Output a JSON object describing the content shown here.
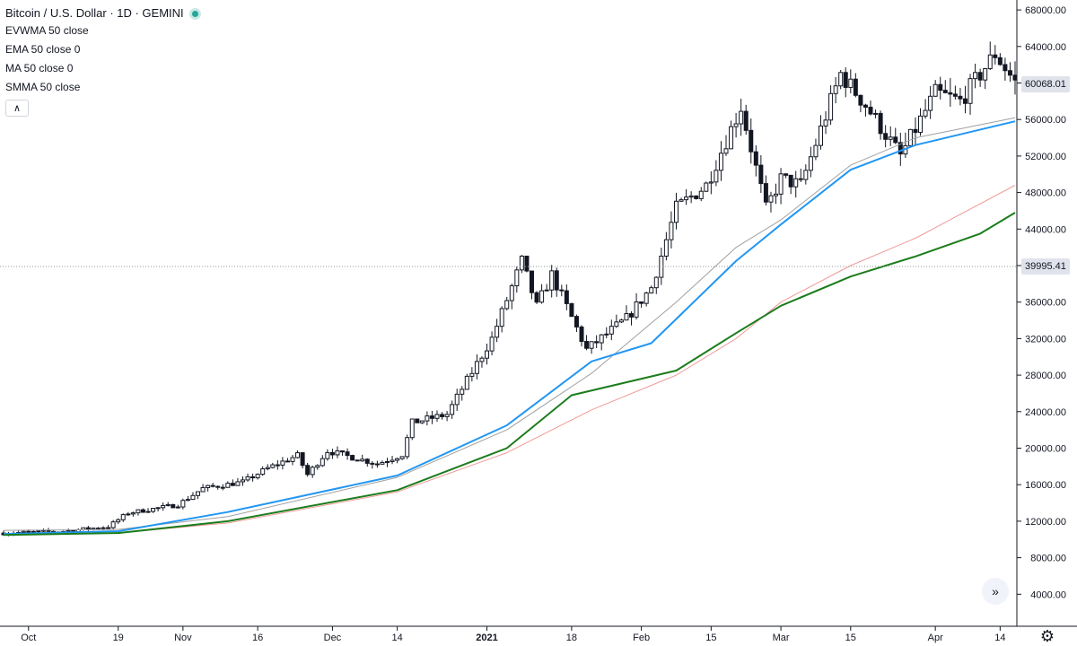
{
  "header": {
    "title": "Bitcoin / U.S. Dollar · 1D · GEMINI",
    "indicators": [
      "EVWMA 50 close",
      "EMA 50 close 0",
      "MA 50 close 0",
      "SMMA 50 close"
    ]
  },
  "price_tags": {
    "last": "60068.01",
    "crosshair": "39995.41"
  },
  "colors": {
    "evwma": "#a0a0a0",
    "ema": "#2196f3",
    "ma": "#ef9a9a",
    "smma": "#1b7c1b",
    "candle": "#131722"
  },
  "icons": {
    "collapse": "chevron-up-icon",
    "scroll": "double-chevron-right-icon",
    "settings": "gear-icon"
  },
  "chart_data": {
    "type": "line",
    "title": "Bitcoin / U.S. Dollar · 1D · GEMINI",
    "xlabel": "",
    "ylabel": "",
    "ylim": [
      2000,
      70000
    ],
    "yticks": [
      4000,
      8000,
      12000,
      16000,
      20000,
      24000,
      28000,
      32000,
      36000,
      40000,
      44000,
      48000,
      52000,
      56000,
      60000,
      64000,
      68000
    ],
    "ytick_labels": [
      "4000.00",
      "8000.00",
      "12000.00",
      "16000.00",
      "20000.00",
      "24000.00",
      "28000.00",
      "32000.00",
      "36000.00",
      "40000.00",
      "44000.00",
      "48000.00",
      "52000.00",
      "56000.00",
      "60000.00",
      "64000.00",
      "68000.00"
    ],
    "x_ticks": [
      {
        "label": "Oct",
        "date": "2020-10-01"
      },
      {
        "label": "19",
        "date": "2020-10-19"
      },
      {
        "label": "Nov",
        "date": "2020-11-01"
      },
      {
        "label": "16",
        "date": "2020-11-16"
      },
      {
        "label": "Dec",
        "date": "2020-12-01"
      },
      {
        "label": "14",
        "date": "2020-12-14"
      },
      {
        "label": "2021",
        "date": "2021-01-01"
      },
      {
        "label": "18",
        "date": "2021-01-18"
      },
      {
        "label": "Feb",
        "date": "2021-02-01"
      },
      {
        "label": "15",
        "date": "2021-02-15"
      },
      {
        "label": "Mar",
        "date": "2021-03-01"
      },
      {
        "label": "15",
        "date": "2021-03-15"
      },
      {
        "label": "Apr",
        "date": "2021-04-01"
      },
      {
        "label": "14",
        "date": "2021-04-14"
      }
    ],
    "price_keypoints": [
      [
        "2020-09-26",
        10700
      ],
      [
        "2020-10-08",
        10900
      ],
      [
        "2020-10-17",
        11400
      ],
      [
        "2020-10-21",
        12900
      ],
      [
        "2020-10-31",
        13800
      ],
      [
        "2020-11-05",
        15600
      ],
      [
        "2020-11-13",
        16300
      ],
      [
        "2020-11-18",
        17800
      ],
      [
        "2020-11-24",
        19200
      ],
      [
        "2020-11-26",
        17100
      ],
      [
        "2020-11-30",
        19700
      ],
      [
        "2020-12-10",
        18300
      ],
      [
        "2020-12-15",
        19300
      ],
      [
        "2020-12-17",
        22800
      ],
      [
        "2020-12-24",
        23700
      ],
      [
        "2020-12-27",
        26500
      ],
      [
        "2021-01-02",
        32000
      ],
      [
        "2021-01-08",
        40500
      ],
      [
        "2021-01-11",
        35500
      ],
      [
        "2021-01-14",
        39000
      ],
      [
        "2021-01-21",
        30800
      ],
      [
        "2021-01-29",
        34200
      ],
      [
        "2021-02-03",
        37600
      ],
      [
        "2021-02-08",
        46300
      ],
      [
        "2021-02-14",
        48800
      ],
      [
        "2021-02-21",
        57400
      ],
      [
        "2021-02-26",
        46200
      ],
      [
        "2021-03-01",
        49500
      ],
      [
        "2021-03-05",
        48800
      ],
      [
        "2021-03-13",
        61000
      ],
      [
        "2021-03-18",
        57600
      ],
      [
        "2021-03-25",
        52000
      ],
      [
        "2021-04-01",
        58900
      ],
      [
        "2021-04-06",
        58000
      ],
      [
        "2021-04-13",
        63200
      ],
      [
        "2021-04-17",
        60068
      ]
    ],
    "series": [
      {
        "name": "EVWMA 50 close",
        "color": "#a0a0a0",
        "values": [
          [
            "2020-09-26",
            11000
          ],
          [
            "2020-10-19",
            11100
          ],
          [
            "2020-11-10",
            12500
          ],
          [
            "2020-12-14",
            16800
          ],
          [
            "2021-01-05",
            22000
          ],
          [
            "2021-01-22",
            28200
          ],
          [
            "2021-02-08",
            36000
          ],
          [
            "2021-02-20",
            42000
          ],
          [
            "2021-03-01",
            45000
          ],
          [
            "2021-03-15",
            51000
          ],
          [
            "2021-03-28",
            54000
          ],
          [
            "2021-04-17",
            56200
          ]
        ]
      },
      {
        "name": "EMA 50 close 0",
        "color": "#2196f3",
        "values": [
          [
            "2020-09-26",
            10600
          ],
          [
            "2020-10-19",
            10900
          ],
          [
            "2020-11-10",
            13000
          ],
          [
            "2020-12-14",
            17000
          ],
          [
            "2021-01-05",
            22500
          ],
          [
            "2021-01-22",
            29500
          ],
          [
            "2021-02-03",
            31500
          ],
          [
            "2021-02-20",
            40500
          ],
          [
            "2021-03-01",
            44500
          ],
          [
            "2021-03-15",
            50500
          ],
          [
            "2021-03-28",
            53200
          ],
          [
            "2021-04-17",
            55800
          ]
        ]
      },
      {
        "name": "MA 50 close 0",
        "color": "#ef9a9a",
        "values": [
          [
            "2020-09-26",
            10500
          ],
          [
            "2020-10-19",
            10700
          ],
          [
            "2020-11-10",
            11800
          ],
          [
            "2020-12-14",
            15200
          ],
          [
            "2021-01-05",
            19500
          ],
          [
            "2021-01-22",
            24200
          ],
          [
            "2021-02-08",
            28000
          ],
          [
            "2021-02-20",
            32000
          ],
          [
            "2021-03-01",
            36000
          ],
          [
            "2021-03-15",
            40000
          ],
          [
            "2021-03-28",
            43000
          ],
          [
            "2021-04-17",
            48800
          ]
        ]
      },
      {
        "name": "SMMA 50 close",
        "color": "#1b7c1b",
        "values": [
          [
            "2020-09-26",
            10500
          ],
          [
            "2020-10-19",
            10700
          ],
          [
            "2020-11-10",
            12000
          ],
          [
            "2020-12-14",
            15400
          ],
          [
            "2021-01-05",
            20000
          ],
          [
            "2021-01-18",
            25800
          ],
          [
            "2021-02-08",
            28500
          ],
          [
            "2021-02-20",
            32600
          ],
          [
            "2021-03-01",
            35600
          ],
          [
            "2021-03-15",
            38800
          ],
          [
            "2021-03-28",
            41000
          ],
          [
            "2021-04-10",
            43500
          ],
          [
            "2021-04-17",
            45800
          ]
        ]
      }
    ],
    "grid": false,
    "legend": "top-left"
  }
}
